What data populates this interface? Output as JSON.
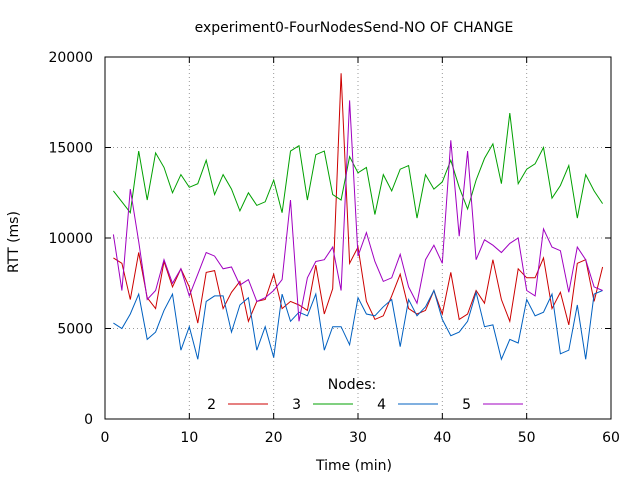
{
  "chart_data": {
    "type": "line",
    "title": "experiment0-FourNodesSend-NO OF CHANGE",
    "xlabel": "Time (min)",
    "ylabel": "RTT (ms)",
    "xlim": [
      0,
      60
    ],
    "ylim": [
      0,
      20000
    ],
    "xticks": [
      0,
      10,
      20,
      30,
      40,
      50,
      60
    ],
    "yticks": [
      0,
      5000,
      10000,
      15000,
      20000
    ],
    "grid": true,
    "legend": {
      "title": "Nodes:",
      "placement": "bottom-center inside",
      "orientation": "horizontal"
    },
    "x": [
      1,
      2,
      3,
      4,
      5,
      6,
      7,
      8,
      9,
      10,
      11,
      12,
      13,
      14,
      15,
      16,
      17,
      18,
      19,
      20,
      21,
      22,
      23,
      24,
      25,
      26,
      27,
      28,
      29,
      30,
      31,
      32,
      33,
      34,
      35,
      36,
      37,
      38,
      39,
      40,
      41,
      42,
      43,
      44,
      45,
      46,
      47,
      48,
      49,
      50,
      51,
      52,
      53,
      54,
      55,
      56,
      57,
      58,
      59
    ],
    "series": [
      {
        "name": "2",
        "color": "#cc0000",
        "values": [
          8900,
          8600,
          6600,
          9200,
          6700,
          6100,
          8700,
          7300,
          8300,
          7300,
          5300,
          8100,
          8200,
          6100,
          7000,
          7600,
          5400,
          6500,
          6600,
          8000,
          6100,
          6500,
          6300,
          6000,
          8500,
          5800,
          7200,
          19100,
          8600,
          9500,
          6500,
          5500,
          5700,
          6800,
          8000,
          6100,
          5800,
          6000,
          7100,
          5800,
          8100,
          5500,
          5800,
          7100,
          6400,
          8800,
          6600,
          5400,
          8300,
          7800,
          7800,
          8900,
          6100,
          7000,
          5200,
          8600,
          8800,
          6500,
          8400
        ]
      },
      {
        "name": "3",
        "color": "#00a000",
        "values": [
          12600,
          12000,
          11400,
          14800,
          12100,
          14700,
          13900,
          12500,
          13500,
          12800,
          13000,
          14300,
          12400,
          13500,
          12700,
          11500,
          12500,
          11800,
          12000,
          13200,
          11400,
          14800,
          15100,
          12100,
          14600,
          14800,
          12400,
          12100,
          14500,
          13600,
          13900,
          11300,
          13500,
          12600,
          13800,
          14000,
          11100,
          13500,
          12700,
          13100,
          14300,
          12800,
          11600,
          13200,
          14400,
          15200,
          13000,
          16900,
          13000,
          13800,
          14100,
          15000,
          12200,
          12900,
          14000,
          11100,
          13500,
          12600,
          11900
        ]
      },
      {
        "name": "4",
        "color": "#0060c0",
        "values": [
          5300,
          5000,
          5800,
          6900,
          4400,
          4800,
          6000,
          6900,
          3800,
          5100,
          3300,
          6500,
          6800,
          6800,
          4800,
          6300,
          6700,
          3800,
          5100,
          3400,
          6900,
          5400,
          5900,
          5700,
          6900,
          3800,
          5100,
          5100,
          4100,
          6700,
          5800,
          5700,
          6200,
          6600,
          4000,
          6600,
          5700,
          6200,
          7100,
          5500,
          4600,
          4800,
          5400,
          7000,
          5100,
          5200,
          3300,
          4400,
          4200,
          6600,
          5700,
          5900,
          6900,
          3600,
          3800,
          6300,
          3300,
          6900,
          7100
        ]
      },
      {
        "name": "5",
        "color": "#a000c0",
        "values": [
          10200,
          7100,
          12700,
          9800,
          6600,
          7100,
          8800,
          7500,
          8300,
          6800,
          8000,
          9200,
          9000,
          8300,
          8400,
          7400,
          7700,
          6500,
          6700,
          7100,
          7700,
          12100,
          5400,
          7800,
          8700,
          8800,
          9500,
          7100,
          17600,
          9000,
          10300,
          8700,
          7600,
          7800,
          9100,
          7300,
          6400,
          8800,
          9600,
          8600,
          15400,
          10100,
          14800,
          8800,
          9900,
          9600,
          9200,
          9700,
          10000,
          7100,
          6800,
          10500,
          9500,
          9300,
          7000,
          9500,
          8800,
          7300,
          7100
        ]
      }
    ]
  }
}
